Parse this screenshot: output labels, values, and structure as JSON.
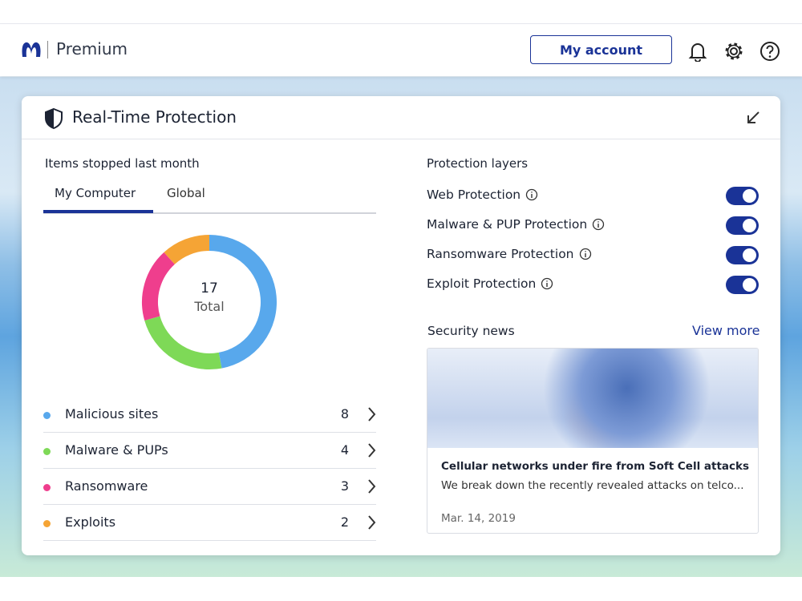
{
  "header": {
    "brand": "Premium",
    "account_button": "My account"
  },
  "panel": {
    "title": "Real-Time Protection",
    "items": {
      "heading": "Items stopped last month",
      "tabs": [
        "My Computer",
        "Global"
      ],
      "active_tab": 0,
      "total": 17,
      "total_label": "Total",
      "rows": [
        {
          "name": "Malicious sites",
          "count": 8,
          "color": "#58a8ec"
        },
        {
          "name": "Malware & PUPs",
          "count": 4,
          "color": "#7ed957"
        },
        {
          "name": "Ransomware",
          "count": 3,
          "color": "#ef3e8d"
        },
        {
          "name": "Exploits",
          "count": 2,
          "color": "#f5a435"
        }
      ]
    },
    "layers": {
      "heading": "Protection layers",
      "items": [
        {
          "name": "Web Protection",
          "enabled": true
        },
        {
          "name": "Malware & PUP Protection",
          "enabled": true
        },
        {
          "name": "Ransomware Protection",
          "enabled": true
        },
        {
          "name": "Exploit Protection",
          "enabled": true
        }
      ]
    },
    "news": {
      "heading": "Security news",
      "link": "View more",
      "article": {
        "title": "Cellular networks under fire from Soft Cell attacks",
        "summary": "We break down the recently revealed attacks on telco...",
        "date": "Mar. 14, 2019"
      }
    }
  }
}
